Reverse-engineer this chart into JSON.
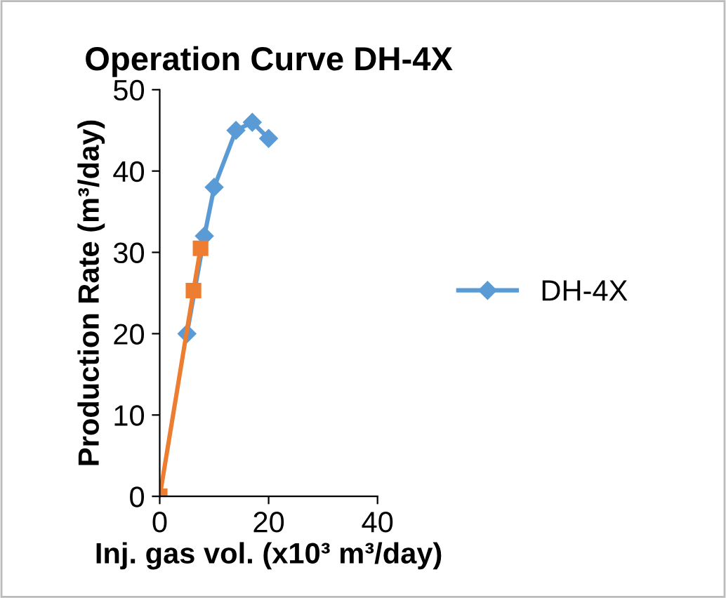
{
  "chart_data": {
    "type": "line",
    "title": "Operation Curve DH-4X",
    "xlabel": "Inj. gas vol. (x10³ m³/day)",
    "ylabel": "Production Rate (m³/day)",
    "xlim": [
      0,
      40
    ],
    "xticks": [
      0,
      20,
      40
    ],
    "ylim": [
      0,
      50
    ],
    "yticks": [
      0,
      10,
      20,
      30,
      40,
      50
    ],
    "grid": false,
    "legend": "right",
    "series": [
      {
        "name": "DH-4X",
        "color": "#5b9bd5",
        "marker": "diamond",
        "x": [
          5,
          8.2,
          10,
          14,
          17,
          20
        ],
        "values": [
          20,
          32,
          38,
          45,
          46,
          44
        ]
      },
      {
        "color": "#ed7d31",
        "marker": "square",
        "x": [
          0,
          6.2,
          7.5
        ],
        "values": [
          0,
          25.3,
          30.5
        ]
      }
    ]
  }
}
